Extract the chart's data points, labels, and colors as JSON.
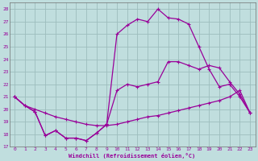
{
  "xlabel": "Windchill (Refroidissement éolien,°C)",
  "bg_color": "#c0dede",
  "grid_color": "#9dbdbd",
  "line_color": "#990099",
  "xlim": [
    -0.5,
    23.5
  ],
  "ylim": [
    17,
    28.5
  ],
  "xticks": [
    0,
    1,
    2,
    3,
    4,
    5,
    6,
    7,
    8,
    9,
    10,
    11,
    12,
    13,
    14,
    15,
    16,
    17,
    18,
    19,
    20,
    21,
    22,
    23
  ],
  "yticks": [
    17,
    18,
    19,
    20,
    21,
    22,
    23,
    24,
    25,
    26,
    27,
    28
  ],
  "curve1_x": [
    0,
    1,
    2,
    3,
    4,
    5,
    6,
    7,
    8,
    9,
    10,
    11,
    12,
    13,
    14,
    15,
    16,
    17,
    18,
    19,
    20,
    21,
    22,
    23
  ],
  "curve1_y": [
    21.0,
    20.3,
    19.8,
    17.9,
    18.3,
    17.7,
    17.7,
    17.5,
    18.1,
    18.8,
    26.0,
    26.7,
    27.2,
    27.0,
    28.0,
    27.3,
    27.2,
    26.8,
    25.0,
    23.2,
    21.8,
    22.0,
    21.0,
    19.7
  ],
  "curve2_x": [
    0,
    1,
    2,
    3,
    4,
    5,
    6,
    7,
    8,
    9,
    10,
    11,
    12,
    13,
    14,
    15,
    16,
    17,
    18,
    19,
    20,
    21,
    22,
    23
  ],
  "curve2_y": [
    21.0,
    20.3,
    19.8,
    17.9,
    18.3,
    17.7,
    17.7,
    17.5,
    18.1,
    18.8,
    21.5,
    22.0,
    21.8,
    22.0,
    22.2,
    23.8,
    23.8,
    23.5,
    23.2,
    23.5,
    23.3,
    22.2,
    21.2,
    19.7
  ],
  "curve3_x": [
    0,
    1,
    2,
    3,
    4,
    5,
    6,
    7,
    8,
    9,
    10,
    11,
    12,
    13,
    14,
    15,
    16,
    17,
    18,
    19,
    20,
    21,
    22,
    23
  ],
  "curve3_y": [
    21.0,
    20.3,
    20.0,
    19.7,
    19.4,
    19.2,
    19.0,
    18.8,
    18.7,
    18.7,
    18.8,
    19.0,
    19.2,
    19.4,
    19.5,
    19.7,
    19.9,
    20.1,
    20.3,
    20.5,
    20.7,
    21.0,
    21.5,
    19.7
  ]
}
